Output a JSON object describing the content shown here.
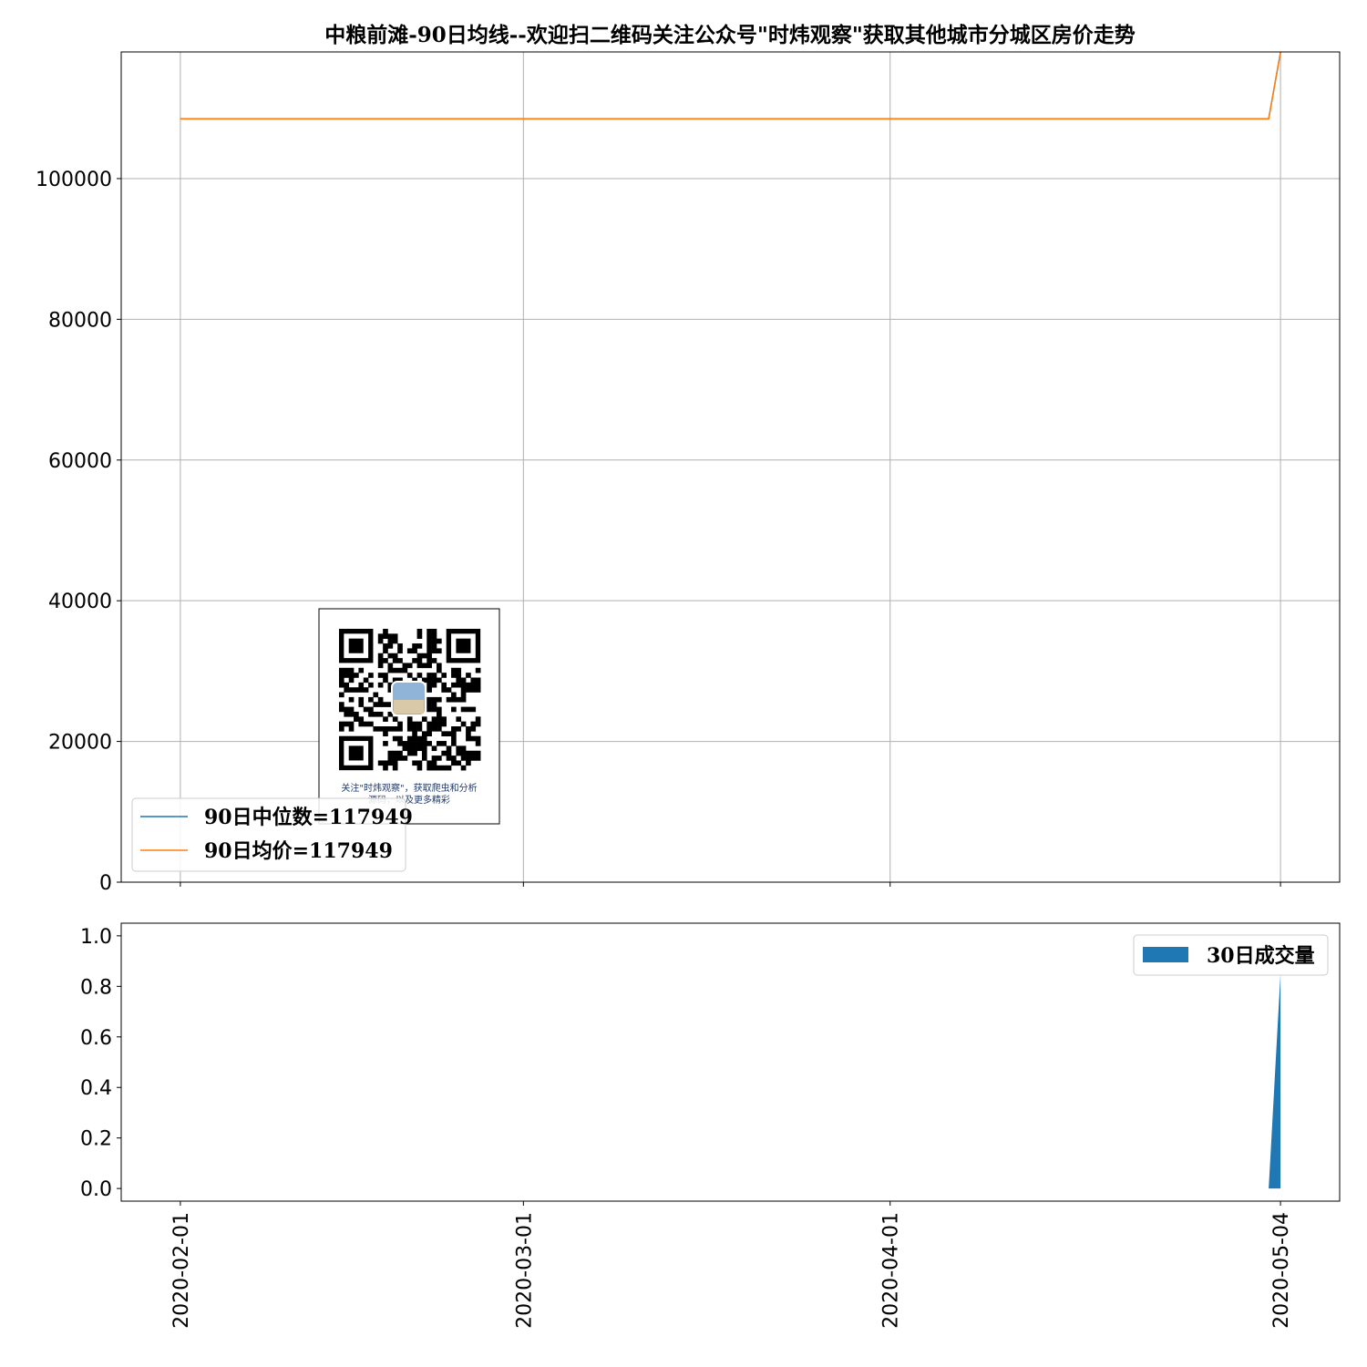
{
  "chart_data": [
    {
      "type": "line",
      "title": "中粮前滩-90日均线--欢迎扫二维码关注公众号\"时炜观察\"获取其他城市分城区房价走势",
      "x_ticks": [
        "2020-02-01",
        "2020-03-01",
        "2020-04-01",
        "2020-05-04"
      ],
      "xlim": [
        "2020-01-27",
        "2020-05-09"
      ],
      "ylim": [
        0,
        118000
      ],
      "y_ticks": [
        0,
        20000,
        40000,
        60000,
        80000,
        100000
      ],
      "y_tick_labels": [
        "0",
        "20000",
        "40000",
        "60000",
        "80000",
        "100000"
      ],
      "grid": true,
      "legend_location": "lower-left",
      "series": [
        {
          "name": "90日中位数=117949",
          "color": "#1f77b4",
          "points": [
            [
              "2020-02-01",
              108500
            ],
            [
              "2020-05-03",
              108500
            ],
            [
              "2020-05-04",
              117949
            ]
          ]
        },
        {
          "name": "90日均价=117949",
          "color": "#ff7f0e",
          "points": [
            [
              "2020-02-01",
              108500
            ],
            [
              "2020-05-03",
              108500
            ],
            [
              "2020-05-04",
              117949
            ]
          ]
        }
      ]
    },
    {
      "type": "area",
      "xlim": [
        "2020-01-27",
        "2020-05-09"
      ],
      "ylim": [
        -0.05,
        1.05
      ],
      "y_ticks": [
        0,
        0.2,
        0.4,
        0.6,
        0.8,
        1.0
      ],
      "y_tick_labels": [
        "0.0",
        "0.2",
        "0.4",
        "0.6",
        "0.8",
        "1.0"
      ],
      "x_ticks": [
        "2020-02-01",
        "2020-03-01",
        "2020-04-01",
        "2020-05-04"
      ],
      "grid": false,
      "legend_location": "upper-right",
      "series": [
        {
          "name": "30日成交量",
          "color": "#1f77b4",
          "points": [
            [
              "2020-05-03",
              0
            ],
            [
              "2020-05-04",
              0.85
            ]
          ]
        }
      ]
    }
  ],
  "qr_caption": {
    "line1": "关注\"时炜观察\"，获取爬虫和分析",
    "line2": "源码，以及更多精彩"
  }
}
